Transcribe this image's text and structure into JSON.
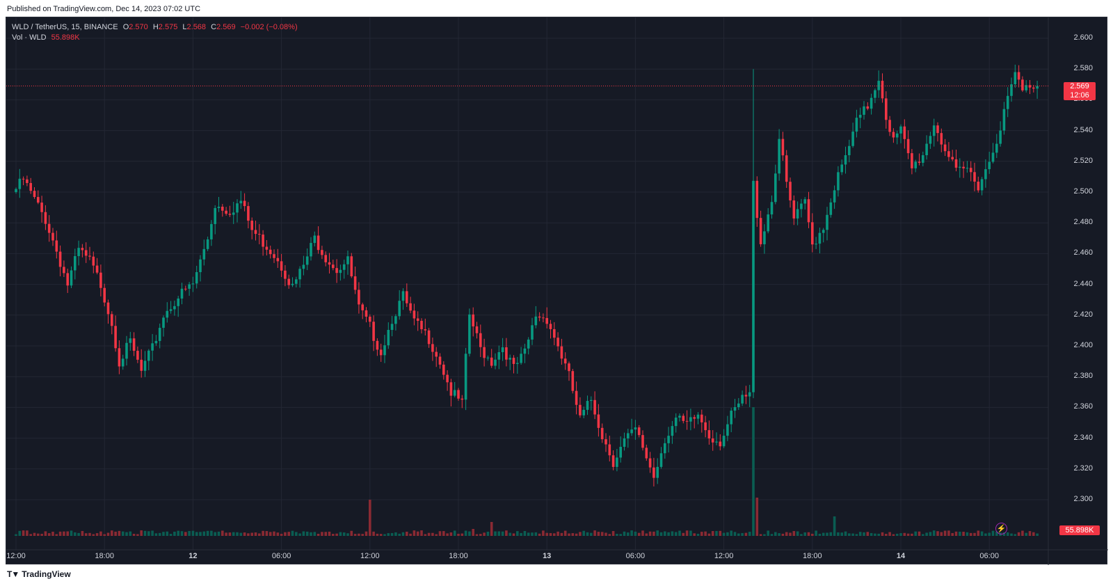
{
  "published": "Published on TradingView.com, Dec 14, 2023 07:02 UTC",
  "brand": "TradingView",
  "legend": {
    "symbol": "WLD / TetherUS, 15, BINANCE",
    "o_label": "O",
    "o": "2.570",
    "h_label": "H",
    "h": "2.575",
    "l_label": "L",
    "l": "2.568",
    "c_label": "C",
    "c": "2.569",
    "change": "−0.002 (−0.08%)",
    "vol_label": "Vol · WLD",
    "vol": "55.898K"
  },
  "colors": {
    "up": "#089981",
    "down": "#f23645",
    "background": "#161a25",
    "grid": "#232734",
    "text": "#d1d4dc"
  },
  "last_price": {
    "value": "2.569",
    "countdown": "12:06"
  },
  "volume_badge": "55.898K",
  "chart_data": {
    "type": "candlestick",
    "interval": "15",
    "exchange": "BINANCE",
    "pair": "WLD / TetherUS",
    "ylim": [
      2.29,
      2.605
    ],
    "y_ticks": [
      "2.600",
      "2.580",
      "2.560",
      "2.540",
      "2.520",
      "2.500",
      "2.480",
      "2.460",
      "2.440",
      "2.420",
      "2.400",
      "2.380",
      "2.360",
      "2.340",
      "2.320",
      "2.300"
    ],
    "x_ticks": [
      {
        "label": "12:00",
        "bar": 0,
        "day": false
      },
      {
        "label": "18:00",
        "bar": 24,
        "day": false
      },
      {
        "label": "12",
        "bar": 48,
        "day": true
      },
      {
        "label": "06:00",
        "bar": 72,
        "day": false
      },
      {
        "label": "12:00",
        "bar": 96,
        "day": false
      },
      {
        "label": "18:00",
        "bar": 120,
        "day": false
      },
      {
        "label": "13",
        "bar": 144,
        "day": true
      },
      {
        "label": "06:00",
        "bar": 168,
        "day": false
      },
      {
        "label": "12:00",
        "bar": 192,
        "day": false
      },
      {
        "label": "18:00",
        "bar": 216,
        "day": false
      },
      {
        "label": "14",
        "bar": 240,
        "day": true
      },
      {
        "label": "06:00",
        "bar": 264,
        "day": false
      }
    ],
    "path": [
      [
        0,
        2.502
      ],
      [
        2,
        2.508
      ],
      [
        5,
        2.495
      ],
      [
        8,
        2.482
      ],
      [
        11,
        2.462
      ],
      [
        14,
        2.44
      ],
      [
        17,
        2.462
      ],
      [
        20,
        2.455
      ],
      [
        23,
        2.44
      ],
      [
        26,
        2.415
      ],
      [
        28,
        2.39
      ],
      [
        31,
        2.402
      ],
      [
        34,
        2.383
      ],
      [
        37,
        2.398
      ],
      [
        40,
        2.42
      ],
      [
        44,
        2.432
      ],
      [
        48,
        2.44
      ],
      [
        52,
        2.47
      ],
      [
        54,
        2.492
      ],
      [
        58,
        2.488
      ],
      [
        61,
        2.494
      ],
      [
        64,
        2.475
      ],
      [
        68,
        2.465
      ],
      [
        71,
        2.457
      ],
      [
        75,
        2.438
      ],
      [
        78,
        2.452
      ],
      [
        81,
        2.47
      ],
      [
        84,
        2.458
      ],
      [
        87,
        2.45
      ],
      [
        90,
        2.455
      ],
      [
        93,
        2.424
      ],
      [
        96,
        2.412
      ],
      [
        99,
        2.396
      ],
      [
        102,
        2.418
      ],
      [
        105,
        2.432
      ],
      [
        108,
        2.415
      ],
      [
        112,
        2.405
      ],
      [
        115,
        2.39
      ],
      [
        118,
        2.37
      ],
      [
        121,
        2.362
      ],
      [
        123,
        2.42
      ],
      [
        126,
        2.398
      ],
      [
        129,
        2.39
      ],
      [
        132,
        2.4
      ],
      [
        135,
        2.385
      ],
      [
        138,
        2.395
      ],
      [
        141,
        2.42
      ],
      [
        144,
        2.418
      ],
      [
        147,
        2.4
      ],
      [
        150,
        2.38
      ],
      [
        153,
        2.352
      ],
      [
        156,
        2.365
      ],
      [
        159,
        2.342
      ],
      [
        162,
        2.325
      ],
      [
        165,
        2.338
      ],
      [
        168,
        2.345
      ],
      [
        171,
        2.328
      ],
      [
        173,
        2.315
      ],
      [
        176,
        2.34
      ],
      [
        179,
        2.352
      ],
      [
        182,
        2.348
      ],
      [
        185,
        2.355
      ],
      [
        188,
        2.342
      ],
      [
        191,
        2.338
      ],
      [
        194,
        2.354
      ],
      [
        197,
        2.365
      ],
      [
        199,
        2.368
      ],
      [
        200,
        2.505
      ],
      [
        202,
        2.468
      ],
      [
        205,
        2.495
      ],
      [
        207,
        2.535
      ],
      [
        209,
        2.505
      ],
      [
        211,
        2.482
      ],
      [
        214,
        2.493
      ],
      [
        216,
        2.466
      ],
      [
        219,
        2.478
      ],
      [
        222,
        2.504
      ],
      [
        225,
        2.522
      ],
      [
        228,
        2.545
      ],
      [
        231,
        2.556
      ],
      [
        234,
        2.575
      ],
      [
        236,
        2.55
      ],
      [
        238,
        2.533
      ],
      [
        240,
        2.54
      ],
      [
        243,
        2.515
      ],
      [
        246,
        2.525
      ],
      [
        249,
        2.545
      ],
      [
        252,
        2.528
      ],
      [
        255,
        2.512
      ],
      [
        258,
        2.515
      ],
      [
        261,
        2.505
      ],
      [
        264,
        2.52
      ],
      [
        267,
        2.543
      ],
      [
        269,
        2.56
      ],
      [
        271,
        2.577
      ],
      [
        273,
        2.565
      ],
      [
        275,
        2.57
      ],
      [
        277,
        2.569
      ]
    ],
    "volume_profile": {
      "typical": 4,
      "spikes": [
        [
          96,
          52
        ],
        [
          129,
          20
        ],
        [
          200,
          185
        ],
        [
          201,
          55
        ],
        [
          222,
          28
        ],
        [
          124,
          10
        ]
      ]
    }
  }
}
